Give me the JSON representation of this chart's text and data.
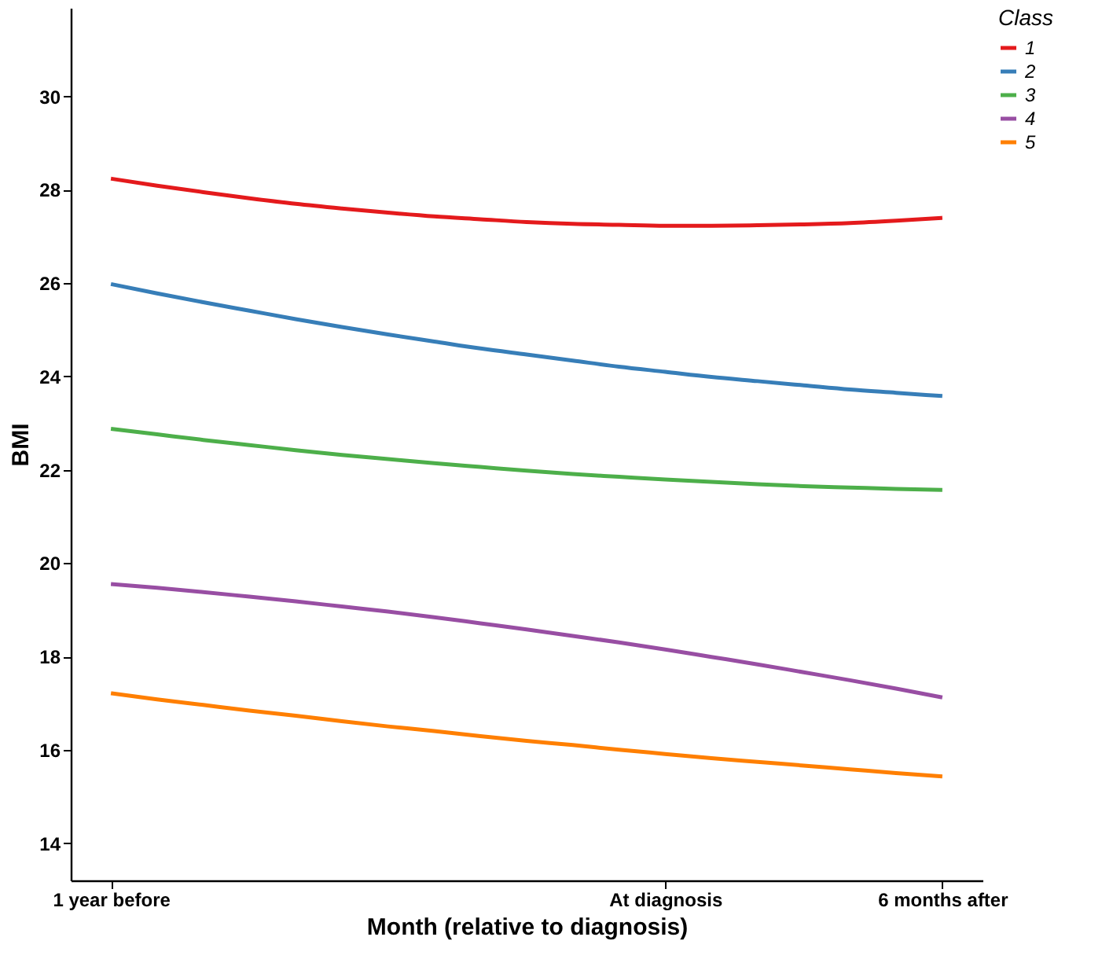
{
  "chart_data": {
    "type": "line",
    "xlabel": "Month (relative to diagnosis)",
    "ylabel": "BMI",
    "legend_title": "Class",
    "categories": [
      "1 year before",
      null,
      null,
      null,
      null,
      null,
      null,
      null,
      null,
      null,
      null,
      null,
      "At diagnosis",
      null,
      null,
      null,
      null,
      null,
      "6 months after"
    ],
    "ylim": [
      13.2,
      31.9
    ],
    "yticks": [
      14,
      16,
      18,
      20,
      22,
      24,
      26,
      28,
      30
    ],
    "series": [
      {
        "name": "1",
        "color": "#e41a1c",
        "values": [
          28.24,
          28.09,
          27.95,
          27.82,
          27.7,
          27.6,
          27.51,
          27.43,
          27.37,
          27.31,
          27.27,
          27.25,
          27.23,
          27.23,
          27.24,
          27.26,
          27.29,
          27.34,
          27.4
        ]
      },
      {
        "name": "2",
        "color": "#377eb8",
        "values": [
          25.98,
          25.78,
          25.59,
          25.41,
          25.23,
          25.06,
          24.9,
          24.75,
          24.6,
          24.47,
          24.34,
          24.21,
          24.1,
          23.99,
          23.9,
          23.81,
          23.72,
          23.65,
          23.58
        ]
      },
      {
        "name": "3",
        "color": "#4daf4a",
        "values": [
          22.88,
          22.76,
          22.64,
          22.53,
          22.42,
          22.32,
          22.23,
          22.14,
          22.06,
          21.98,
          21.91,
          21.85,
          21.79,
          21.74,
          21.69,
          21.65,
          21.62,
          21.59,
          21.57
        ]
      },
      {
        "name": "4",
        "color": "#984ea3",
        "values": [
          19.55,
          19.47,
          19.38,
          19.28,
          19.18,
          19.07,
          18.96,
          18.84,
          18.71,
          18.58,
          18.44,
          18.3,
          18.15,
          17.99,
          17.83,
          17.66,
          17.49,
          17.31,
          17.12
        ]
      },
      {
        "name": "5",
        "color": "#ff7f00",
        "values": [
          17.21,
          17.08,
          16.96,
          16.84,
          16.73,
          16.61,
          16.5,
          16.4,
          16.29,
          16.19,
          16.1,
          16.0,
          15.91,
          15.82,
          15.74,
          15.66,
          15.58,
          15.5,
          15.43
        ]
      }
    ],
    "grid": false,
    "legend": "right",
    "marker": "none",
    "line_style": "solid"
  }
}
